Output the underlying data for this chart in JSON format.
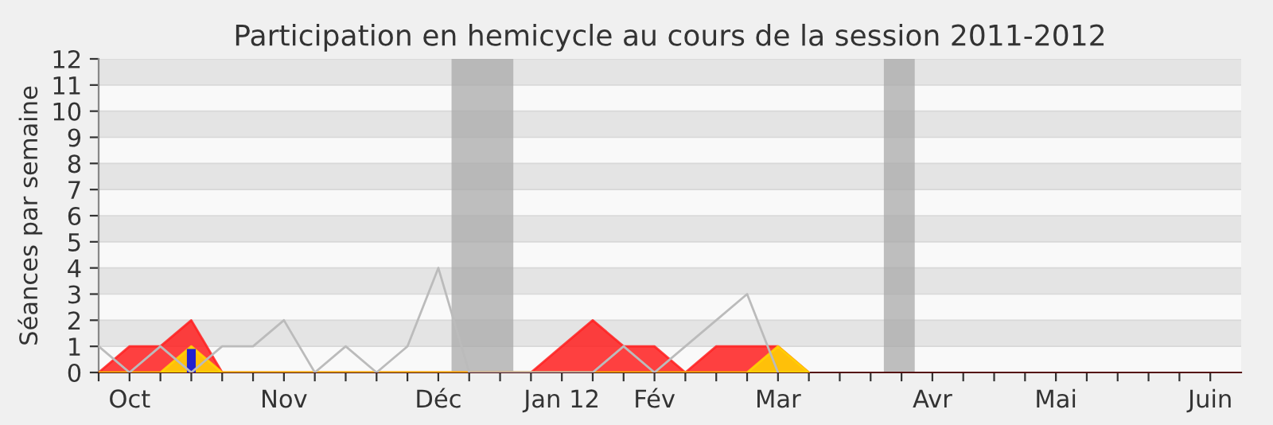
{
  "chart_data": {
    "type": "area",
    "title": "Participation en hemicycle au cours de la session 2011-2012",
    "ylabel": "Séances par semaine",
    "x": [
      "2011-10-03",
      "2011-10-10",
      "2011-10-17",
      "2011-10-24",
      "2011-10-31",
      "2011-11-07",
      "2011-11-14",
      "2011-11-21",
      "2011-11-28",
      "2011-12-05",
      "2011-12-12",
      "2011-12-19",
      "2011-12-26",
      "2012-01-02",
      "2012-01-09",
      "2012-01-16",
      "2012-01-23",
      "2012-01-30",
      "2012-02-06",
      "2012-02-13",
      "2012-02-20",
      "2012-02-27",
      "2012-03-05",
      "2012-03-12"
    ],
    "series": [
      {
        "type": "line",
        "color": "#bbbbbb",
        "values": [
          1,
          0,
          1,
          0,
          1,
          1,
          2,
          0,
          1,
          0,
          1,
          4,
          0,
          0,
          0,
          0,
          0,
          1,
          0,
          1,
          2,
          3,
          0,
          null
        ]
      },
      {
        "color": "#ff2020",
        "values": [
          0,
          1,
          1,
          2,
          0,
          0,
          0,
          0,
          0,
          0,
          0,
          0,
          0,
          0,
          0,
          1,
          2,
          1,
          1,
          0,
          1,
          1,
          1,
          0
        ]
      },
      {
        "color": "#ffd700",
        "values": [
          0,
          0,
          0,
          1,
          0,
          0,
          0,
          0,
          0,
          0,
          0,
          0,
          0,
          0,
          0,
          0,
          0,
          0,
          0,
          0,
          0,
          0,
          1,
          0
        ]
      },
      {
        "type": "bar",
        "color": "#2020d0",
        "x": [
          "2011-10-24"
        ],
        "values": [
          0.9
        ]
      }
    ],
    "xlim": [
      "2011-10-03",
      "2012-06-18"
    ],
    "xticks": [
      {
        "value": "2011-10-03",
        "label": null
      },
      {
        "value": "2011-10-10",
        "label": "Oct"
      },
      {
        "value": "2011-10-17",
        "label": null
      },
      {
        "value": "2011-10-24",
        "label": null
      },
      {
        "value": "2011-10-31",
        "label": null
      },
      {
        "value": "2011-11-07",
        "label": null
      },
      {
        "value": "2011-11-14",
        "label": "Nov"
      },
      {
        "value": "2011-11-21",
        "label": null
      },
      {
        "value": "2011-11-28",
        "label": null
      },
      {
        "value": "2011-12-05",
        "label": null
      },
      {
        "value": "2011-12-12",
        "label": null
      },
      {
        "value": "2011-12-19",
        "label": "Déc"
      },
      {
        "value": "2011-12-26",
        "label": null
      },
      {
        "value": "2012-01-02",
        "label": null
      },
      {
        "value": "2012-01-09",
        "label": null
      },
      {
        "value": "2012-01-16",
        "label": "Jan 12"
      },
      {
        "value": "2012-01-23",
        "label": null
      },
      {
        "value": "2012-01-30",
        "label": null
      },
      {
        "value": "2012-02-06",
        "label": "Fév"
      },
      {
        "value": "2012-02-13",
        "label": null
      },
      {
        "value": "2012-02-20",
        "label": null
      },
      {
        "value": "2012-02-27",
        "label": null
      },
      {
        "value": "2012-03-05",
        "label": "Mar"
      },
      {
        "value": "2012-03-12",
        "label": null
      },
      {
        "value": "2012-03-19",
        "label": null
      },
      {
        "value": "2012-03-26",
        "label": null
      },
      {
        "value": "2012-04-02",
        "label": null
      },
      {
        "value": "2012-04-09",
        "label": "Avr"
      },
      {
        "value": "2012-04-16",
        "label": null
      },
      {
        "value": "2012-04-23",
        "label": null
      },
      {
        "value": "2012-04-30",
        "label": null
      },
      {
        "value": "2012-05-07",
        "label": "Mai"
      },
      {
        "value": "2012-05-14",
        "label": null
      },
      {
        "value": "2012-05-21",
        "label": null
      },
      {
        "value": "2012-05-28",
        "label": null
      },
      {
        "value": "2012-06-04",
        "label": null
      },
      {
        "value": "2012-06-11",
        "label": "Juin"
      }
    ],
    "ylim": [
      0,
      12
    ],
    "yticks": [
      0,
      1,
      2,
      3,
      4,
      5,
      6,
      7,
      8,
      9,
      10,
      11,
      12
    ],
    "grid": "y",
    "bands": [
      {
        "axis": "x",
        "from": "2011-12-22",
        "to": "2012-01-05",
        "color": "#aaaaaa"
      },
      {
        "axis": "x",
        "from": "2012-03-29",
        "to": "2012-04-05",
        "color": "#aaaaaa"
      }
    ]
  }
}
